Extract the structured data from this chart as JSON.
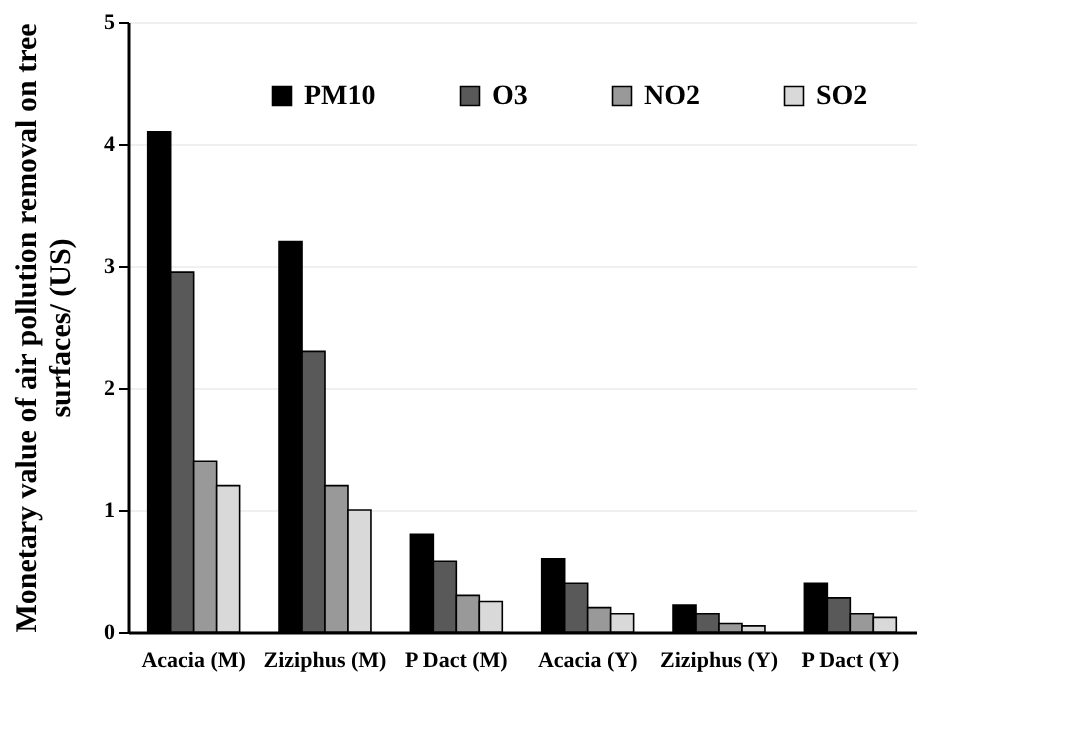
{
  "chart_data": {
    "type": "bar",
    "ylabel": "Monetary value of air pollution  removal on tree\nsurfaces/ (US)",
    "categories": [
      "Acacia (M)",
      "Ziziphus (M)",
      "P Dact (M)",
      "Acacia (Y)",
      "Ziziphus (Y)",
      "P Dact (Y)"
    ],
    "series": [
      {
        "name": "PM10",
        "color": "#000000",
        "values": [
          4.1,
          3.2,
          0.8,
          0.6,
          0.22,
          0.4
        ]
      },
      {
        "name": "O3",
        "color": "#595959",
        "values": [
          2.95,
          2.3,
          0.58,
          0.4,
          0.15,
          0.28
        ]
      },
      {
        "name": "NO2",
        "color": "#999999",
        "values": [
          1.4,
          1.2,
          0.3,
          0.2,
          0.07,
          0.15
        ]
      },
      {
        "name": "SO2",
        "color": "#d9d9d9",
        "values": [
          1.2,
          1.0,
          0.25,
          0.15,
          0.05,
          0.12
        ]
      }
    ],
    "ylim": [
      0,
      5
    ],
    "yticks": [
      0,
      1,
      2,
      3,
      4,
      5
    ],
    "grid": "y",
    "legend": "top"
  }
}
